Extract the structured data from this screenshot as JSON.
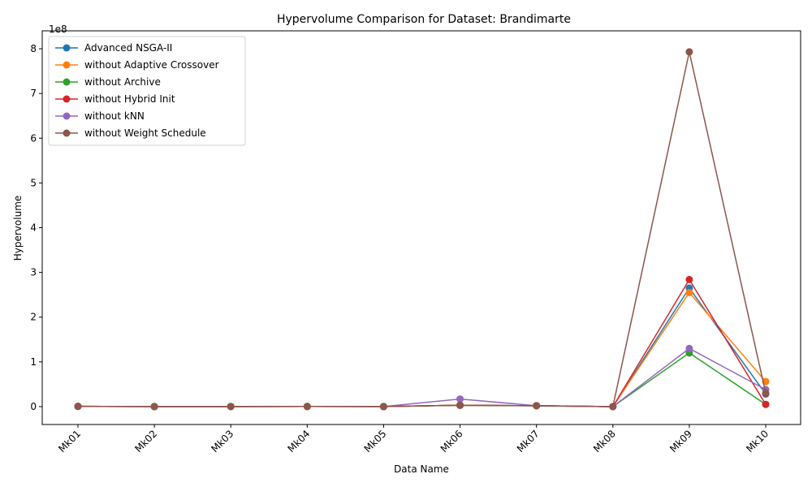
{
  "chart_data": {
    "type": "line",
    "title": "Hypervolume Comparison for Dataset: Brandimarte",
    "xlabel": "Data Name",
    "ylabel": "Hypervolume",
    "y_multiplier_label": "1e8",
    "y_scale": 100000000,
    "categories": [
      "Mk01",
      "Mk02",
      "Mk03",
      "Mk04",
      "Mk05",
      "Mk06",
      "Mk07",
      "Mk08",
      "Mk09",
      "Mk10"
    ],
    "yticks": [
      0,
      1,
      2,
      3,
      4,
      5,
      6,
      7,
      8
    ],
    "ylim": [
      -0.4,
      8.4
    ],
    "legend_position": "upper-left",
    "grid": false,
    "series": [
      {
        "name": "Advanced NSGA-II",
        "color": "#1f77b4",
        "values": [
          0.005,
          0.001,
          0.002,
          0.003,
          0.001,
          0.03,
          0.02,
          0.0,
          2.65,
          0.28
        ]
      },
      {
        "name": "without Adaptive Crossover",
        "color": "#ff7f0e",
        "values": [
          0.005,
          0.001,
          0.002,
          0.003,
          0.001,
          0.03,
          0.02,
          0.0,
          2.55,
          0.56
        ]
      },
      {
        "name": "without Archive",
        "color": "#2ca02c",
        "values": [
          0.005,
          0.001,
          0.002,
          0.003,
          0.001,
          0.03,
          0.02,
          0.0,
          1.2,
          0.05
        ]
      },
      {
        "name": "without Hybrid Init",
        "color": "#d62728",
        "values": [
          0.005,
          0.001,
          0.002,
          0.003,
          0.001,
          0.03,
          0.02,
          0.0,
          2.84,
          0.05
        ]
      },
      {
        "name": "without kNN",
        "color": "#9467bd",
        "values": [
          0.005,
          0.001,
          0.002,
          0.003,
          0.001,
          0.17,
          0.02,
          0.0,
          1.3,
          0.38
        ]
      },
      {
        "name": "without Weight Schedule",
        "color": "#8c564b",
        "values": [
          0.005,
          0.001,
          0.002,
          0.003,
          0.001,
          0.03,
          0.02,
          0.0,
          7.93,
          0.3
        ]
      }
    ]
  }
}
